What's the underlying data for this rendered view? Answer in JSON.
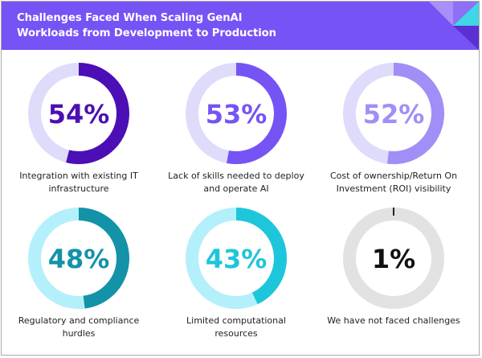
{
  "header": {
    "title_line1": "Challenges Faced When Scaling GenAI",
    "title_line2": "Workloads from Development to Production",
    "background": "#7653f5"
  },
  "chart_data": {
    "type": "pie",
    "subtype": "donut-grid",
    "title": "Challenges Faced When Scaling GenAI Workloads from Development to Production",
    "items": [
      {
        "label_line1": "Integration with existing IT",
        "label_line2": "infrastructure",
        "value": 54,
        "display": "54%",
        "color": "#4b0fb5",
        "track": "#dedcfa",
        "text_color": "#4b0fb5"
      },
      {
        "label_line1": "Lack of skills needed to deploy",
        "label_line2": "and operate AI",
        "value": 53,
        "display": "53%",
        "color": "#7653f5",
        "track": "#dedcfa",
        "text_color": "#7653f5"
      },
      {
        "label_line1": "Cost of ownership/Return On",
        "label_line2": "Investment (ROI) visibility",
        "value": 52,
        "display": "52%",
        "color": "#a18ef6",
        "track": "#dedcfa",
        "text_color": "#a18ef6"
      },
      {
        "label_line1": "Regulatory and compliance",
        "label_line2": "hurdles",
        "value": 48,
        "display": "48%",
        "color": "#1492a8",
        "track": "#b3f0fb",
        "text_color": "#1492a8"
      },
      {
        "label_line1": "Limited computational",
        "label_line2": "resources",
        "value": 43,
        "display": "43%",
        "color": "#1ec6db",
        "track": "#b3f0fb",
        "text_color": "#1ec6db"
      },
      {
        "label_line1": "We have not faced challenges",
        "label_line2": "",
        "value": 1,
        "display": "1%",
        "color": "#222222",
        "track": "#e2e2e2",
        "text_color": "#111111"
      }
    ]
  }
}
